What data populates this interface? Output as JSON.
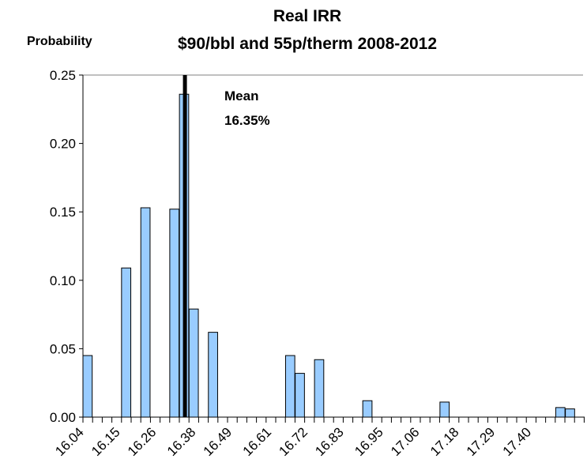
{
  "chart_data": {
    "type": "bar",
    "title": "Real IRR",
    "subtitle": "$90/bbl and 55p/therm 2008-2012",
    "ylabel": "Probability",
    "xlabel": "",
    "ylim": [
      0,
      0.25
    ],
    "yticks": [
      "0.00",
      "0.05",
      "0.10",
      "0.15",
      "0.20",
      "0.25"
    ],
    "yticks_values": [
      0,
      0.05,
      0.1,
      0.15,
      0.2,
      0.25
    ],
    "xlim": [
      16.04,
      17.565
    ],
    "xtick_labels": [
      "16.04",
      "16.15",
      "16.26",
      "16.38",
      "16.49",
      "16.61",
      "16.72",
      "16.83",
      "16.95",
      "17.06",
      "17.18",
      "17.29",
      "17.40"
    ],
    "xtick_values": [
      16.04,
      16.15,
      16.26,
      16.38,
      16.49,
      16.61,
      16.72,
      16.83,
      16.95,
      17.06,
      17.18,
      17.29,
      17.4
    ],
    "bin_width": 0.0293,
    "bars": [
      {
        "x": 16.04,
        "y": 0.045
      },
      {
        "x": 16.1573,
        "y": 0.109
      },
      {
        "x": 16.2159,
        "y": 0.153
      },
      {
        "x": 16.3039,
        "y": 0.152
      },
      {
        "x": 16.3333,
        "y": 0.236
      },
      {
        "x": 16.3626,
        "y": 0.079
      },
      {
        "x": 16.4213,
        "y": 0.062
      },
      {
        "x": 16.6559,
        "y": 0.045
      },
      {
        "x": 16.6852,
        "y": 0.032
      },
      {
        "x": 16.7439,
        "y": 0.042
      },
      {
        "x": 16.8906,
        "y": 0.012
      },
      {
        "x": 17.1252,
        "y": 0.011
      },
      {
        "x": 17.4772,
        "y": 0.007
      },
      {
        "x": 17.5065,
        "y": 0.006
      }
    ],
    "mean_line": {
      "x": 16.35
    },
    "annotation": {
      "line1": "Mean",
      "line2": "16.35%"
    },
    "colors": {
      "bar_fill": "#99ccff",
      "bar_stroke": "#000000",
      "mean_line": "#000000"
    },
    "grid": false,
    "legend": "none"
  }
}
